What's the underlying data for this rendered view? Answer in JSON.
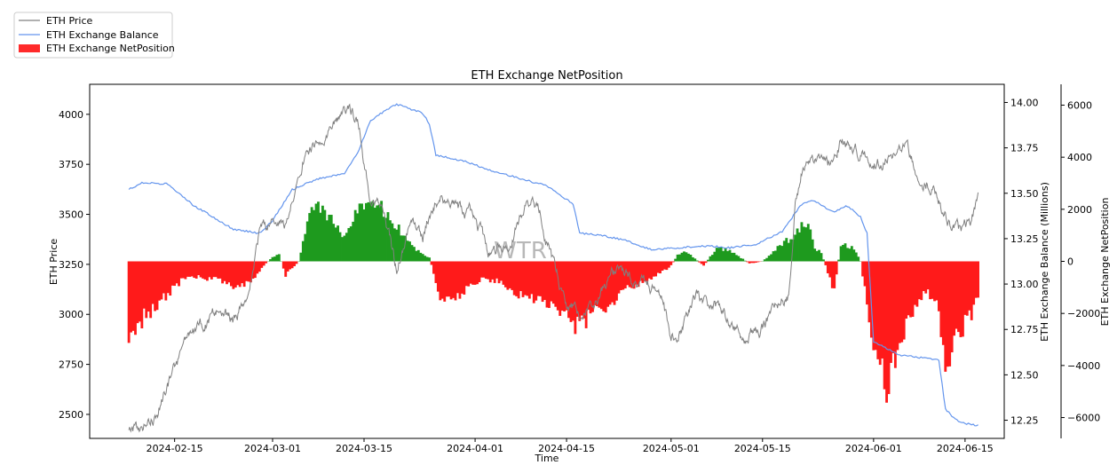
{
  "chart_data": {
    "type": "line",
    "title": "ETH Exchange NetPosition",
    "xlabel": "Time",
    "watermark": "WTR",
    "x_tick_labels": [
      "2024-02-15",
      "2024-03-01",
      "2024-03-15",
      "2024-04-01",
      "2024-04-15",
      "2024-05-01",
      "2024-05-15",
      "2024-06-01",
      "2024-06-15"
    ],
    "x_range": [
      "2024-02-02",
      "2024-06-21"
    ],
    "legend": {
      "placement": "top-left",
      "entries": [
        {
          "label": "ETH Price",
          "color": "#808080",
          "kind": "line"
        },
        {
          "label": "ETH Exchange Balance",
          "color": "#6495ed",
          "kind": "line"
        },
        {
          "label": "ETH Exchange NetPosition",
          "color": "#ff2a2a",
          "kind": "patch"
        }
      ]
    },
    "axes": {
      "price": {
        "label": "ETH Price",
        "range": [
          2380,
          4150
        ],
        "ticks": [
          2500,
          2750,
          3000,
          3250,
          3500,
          3750,
          4000
        ],
        "tick_labels": [
          "2500",
          "2750",
          "3000",
          "3250",
          "3500",
          "3750",
          "4000"
        ]
      },
      "balance": {
        "label": "ETH Exchange Balance (Millions)",
        "range": [
          12.15,
          14.1
        ],
        "ticks": [
          12.25,
          12.5,
          12.75,
          13.0,
          13.25,
          13.5,
          13.75,
          14.0
        ],
        "tick_labels": [
          "12.25",
          "12.50",
          "12.75",
          "13.00",
          "13.25",
          "13.50",
          "13.75",
          "14.00"
        ]
      },
      "netposition": {
        "label": "ETH Exchange NetPosition",
        "range": [
          -6800,
          6800
        ],
        "ticks": [
          -6000,
          -4000,
          -2000,
          0,
          2000,
          4000,
          6000
        ],
        "tick_labels": [
          "−6000",
          "−4000",
          "−2000",
          "0",
          "2000",
          "4000",
          "6000"
        ]
      }
    },
    "series": [
      {
        "name": "ETH Price",
        "color": "#808080",
        "x": [
          "2024-02-08",
          "2024-02-10",
          "2024-02-12",
          "2024-02-14",
          "2024-02-16",
          "2024-02-18",
          "2024-02-20",
          "2024-02-22",
          "2024-02-24",
          "2024-02-26",
          "2024-02-27",
          "2024-02-28",
          "2024-03-01",
          "2024-03-03",
          "2024-03-05",
          "2024-03-06",
          "2024-03-08",
          "2024-03-10",
          "2024-03-12",
          "2024-03-14",
          "2024-03-16",
          "2024-03-18",
          "2024-03-20",
          "2024-03-22",
          "2024-03-24",
          "2024-03-26",
          "2024-03-28",
          "2024-03-30",
          "2024-04-01",
          "2024-04-03",
          "2024-04-05",
          "2024-04-07",
          "2024-04-09",
          "2024-04-11",
          "2024-04-13",
          "2024-04-15",
          "2024-04-17",
          "2024-04-19",
          "2024-04-21",
          "2024-04-23",
          "2024-04-25",
          "2024-04-27",
          "2024-04-29",
          "2024-05-01",
          "2024-05-03",
          "2024-05-05",
          "2024-05-07",
          "2024-05-09",
          "2024-05-11",
          "2024-05-13",
          "2024-05-15",
          "2024-05-17",
          "2024-05-19",
          "2024-05-20",
          "2024-05-21",
          "2024-05-23",
          "2024-05-25",
          "2024-05-27",
          "2024-05-29",
          "2024-05-31",
          "2024-06-02",
          "2024-06-04",
          "2024-06-06",
          "2024-06-08",
          "2024-06-10",
          "2024-06-12",
          "2024-06-14",
          "2024-06-16",
          "2024-06-17"
        ],
        "values": [
          2420,
          2430,
          2500,
          2640,
          2790,
          2900,
          2960,
          2990,
          2960,
          3100,
          3240,
          3410,
          3450,
          3420,
          3650,
          3800,
          3890,
          3950,
          4050,
          3980,
          3580,
          3520,
          3200,
          3500,
          3400,
          3600,
          3570,
          3500,
          3510,
          3300,
          3320,
          3420,
          3600,
          3500,
          3250,
          3050,
          2980,
          3050,
          3150,
          3200,
          3170,
          3140,
          3150,
          2900,
          2960,
          3100,
          3050,
          3000,
          2920,
          2900,
          2950,
          3030,
          3080,
          3500,
          3700,
          3740,
          3750,
          3880,
          3810,
          3780,
          3770,
          3820,
          3830,
          3680,
          3660,
          3500,
          3400,
          3480,
          3580
        ]
      },
      {
        "name": "ETH Exchange Balance",
        "color": "#6495ed",
        "x": [
          "2024-02-08",
          "2024-02-10",
          "2024-02-14",
          "2024-02-18",
          "2024-02-20",
          "2024-02-24",
          "2024-02-28",
          "2024-03-01",
          "2024-03-04",
          "2024-03-08",
          "2024-03-12",
          "2024-03-14",
          "2024-03-16",
          "2024-03-18",
          "2024-03-20",
          "2024-03-24",
          "2024-03-25",
          "2024-03-26",
          "2024-03-30",
          "2024-04-04",
          "2024-04-08",
          "2024-04-12",
          "2024-04-16",
          "2024-04-17",
          "2024-04-20",
          "2024-04-24",
          "2024-04-28",
          "2024-05-02",
          "2024-05-06",
          "2024-05-10",
          "2024-05-14",
          "2024-05-18",
          "2024-05-21",
          "2024-05-23",
          "2024-05-25",
          "2024-05-26",
          "2024-05-28",
          "2024-05-30",
          "2024-05-31",
          "2024-06-01",
          "2024-06-05",
          "2024-06-09",
          "2024-06-11",
          "2024-06-12",
          "2024-06-14",
          "2024-06-17"
        ],
        "values": [
          13.52,
          13.56,
          13.55,
          13.43,
          13.39,
          13.3,
          13.28,
          13.35,
          13.52,
          13.58,
          13.61,
          13.72,
          13.9,
          13.95,
          13.99,
          13.94,
          13.88,
          13.71,
          13.68,
          13.62,
          13.58,
          13.54,
          13.44,
          13.28,
          13.27,
          13.24,
          13.19,
          13.2,
          13.21,
          13.2,
          13.22,
          13.29,
          13.44,
          13.46,
          13.41,
          13.4,
          13.43,
          13.37,
          13.28,
          12.68,
          12.61,
          12.59,
          12.58,
          12.31,
          12.24,
          12.22
        ]
      },
      {
        "name": "ETH Exchange NetPosition",
        "x": [
          "2024-02-08",
          "2024-02-10",
          "2024-02-13",
          "2024-02-17",
          "2024-02-21",
          "2024-02-25",
          "2024-02-27",
          "2024-02-28",
          "2024-03-01",
          "2024-03-02",
          "2024-03-03",
          "2024-03-05",
          "2024-03-07",
          "2024-03-09",
          "2024-03-10",
          "2024-03-12",
          "2024-03-14",
          "2024-03-16",
          "2024-03-18",
          "2024-03-20",
          "2024-03-22",
          "2024-03-24",
          "2024-03-25",
          "2024-03-27",
          "2024-03-30",
          "2024-04-02",
          "2024-04-05",
          "2024-04-08",
          "2024-04-11",
          "2024-04-14",
          "2024-04-17",
          "2024-04-19",
          "2024-04-22",
          "2024-04-25",
          "2024-04-28",
          "2024-05-01",
          "2024-05-02",
          "2024-05-03",
          "2024-05-06",
          "2024-05-08",
          "2024-05-10",
          "2024-05-13",
          "2024-05-15",
          "2024-05-18",
          "2024-05-20",
          "2024-05-21",
          "2024-05-22",
          "2024-05-23",
          "2024-05-24",
          "2024-05-26",
          "2024-05-27",
          "2024-05-29",
          "2024-05-30",
          "2024-05-31",
          "2024-06-01",
          "2024-06-03",
          "2024-06-05",
          "2024-06-07",
          "2024-06-09",
          "2024-06-11",
          "2024-06-12",
          "2024-06-14",
          "2024-06-16",
          "2024-06-17"
        ],
        "values": [
          -3600,
          -2600,
          -1700,
          -600,
          -800,
          -1200,
          -800,
          -400,
          200,
          300,
          -600,
          0,
          2400,
          2200,
          1800,
          1000,
          2400,
          2600,
          2300,
          1600,
          800,
          300,
          200,
          -1900,
          -1400,
          -800,
          -900,
          -1500,
          -1800,
          -2100,
          -3000,
          -2300,
          -1800,
          -1100,
          -800,
          -200,
          300,
          500,
          -200,
          600,
          500,
          -100,
          0,
          800,
          1100,
          1600,
          1900,
          600,
          400,
          -1400,
          800,
          600,
          0,
          -1800,
          -3800,
          -5600,
          -3400,
          -2400,
          -1300,
          -2200,
          -4800,
          -3200,
          -2300,
          -1600
        ]
      }
    ]
  }
}
